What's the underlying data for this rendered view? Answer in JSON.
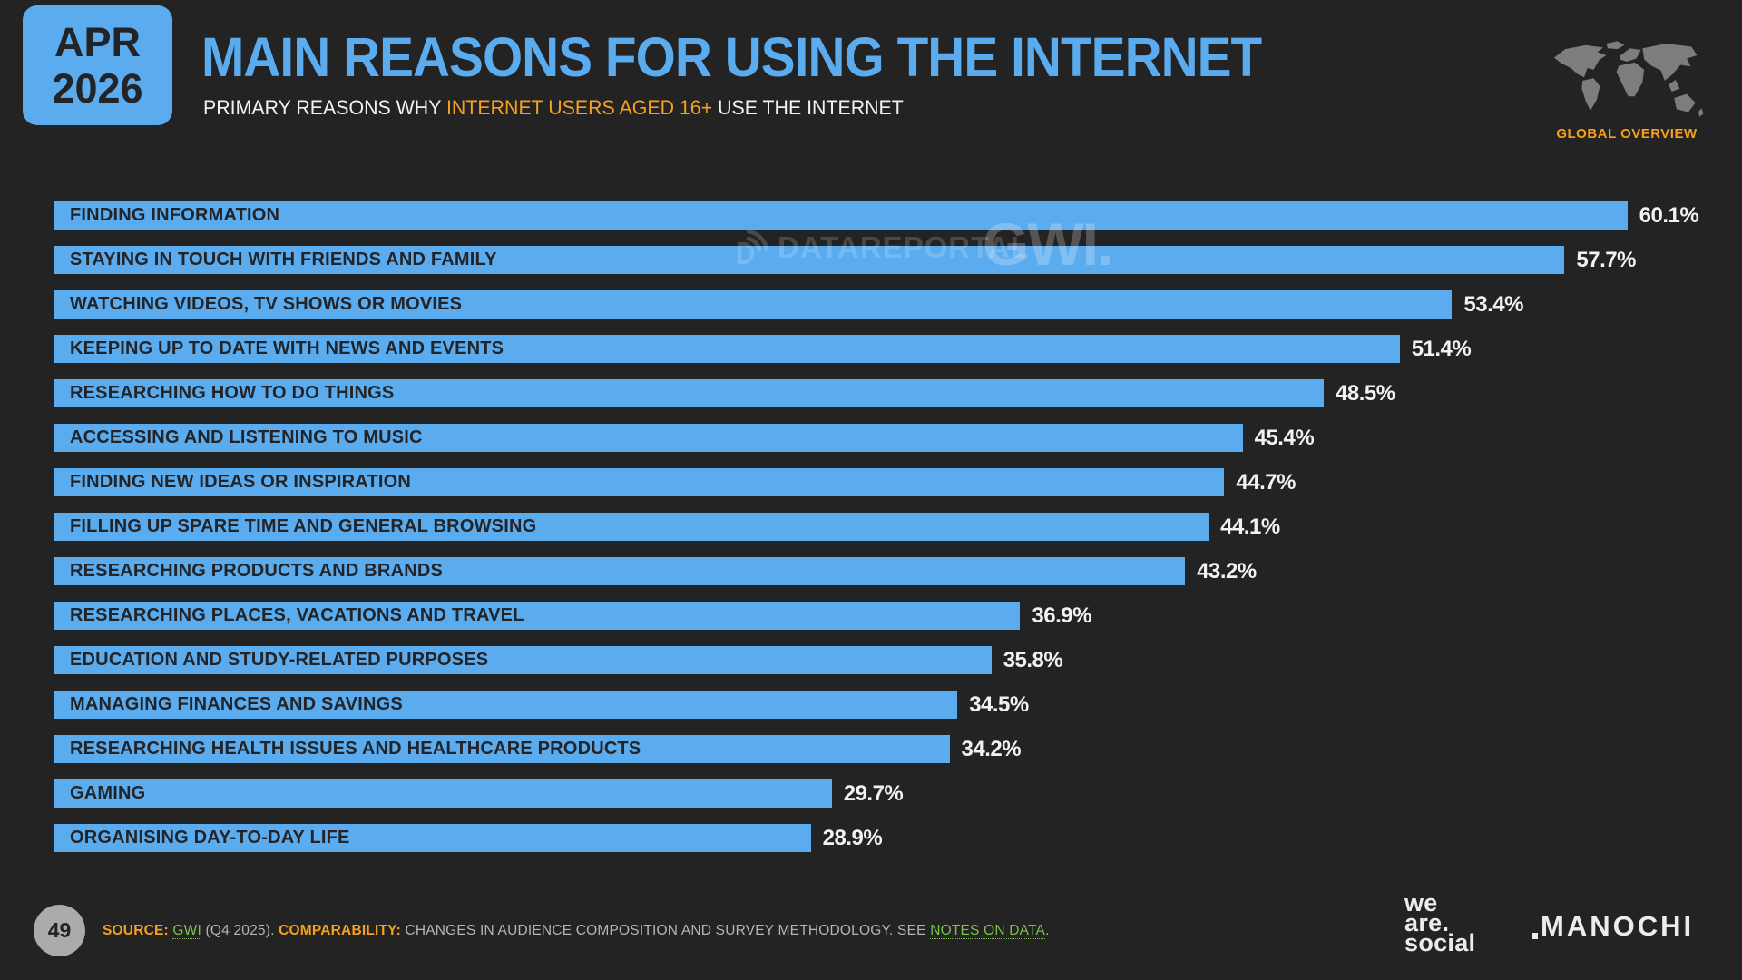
{
  "slide": {
    "date_badge": {
      "month": "APR",
      "year": "2026"
    },
    "title": "MAIN REASONS FOR USING THE INTERNET",
    "subtitle_prefix": "PRIMARY REASONS WHY ",
    "subtitle_highlight": "INTERNET USERS AGED 16+",
    "subtitle_suffix": " USE THE INTERNET",
    "region_label": "GLOBAL OVERVIEW"
  },
  "watermarks": {
    "datareportal": "DATAREPORTAL",
    "gwi": "GWI."
  },
  "chart_data": {
    "type": "bar",
    "orientation": "horizontal",
    "title": "MAIN REASONS FOR USING THE INTERNET",
    "unit": "%",
    "xlim": [
      0,
      62.4
    ],
    "grid": false,
    "legend": "none",
    "bar_color": "#5BACEF",
    "categories": [
      "FINDING INFORMATION",
      "STAYING IN TOUCH WITH FRIENDS AND FAMILY",
      "WATCHING VIDEOS, TV SHOWS OR MOVIES",
      "KEEPING UP TO DATE WITH NEWS AND EVENTS",
      "RESEARCHING HOW TO DO THINGS",
      "ACCESSING AND LISTENING TO MUSIC",
      "FINDING NEW IDEAS OR INSPIRATION",
      "FILLING UP SPARE TIME AND GENERAL BROWSING",
      "RESEARCHING PRODUCTS AND BRANDS",
      "RESEARCHING PLACES, VACATIONS AND TRAVEL",
      "EDUCATION AND STUDY-RELATED PURPOSES",
      "MANAGING FINANCES AND SAVINGS",
      "RESEARCHING HEALTH ISSUES AND HEALTHCARE PRODUCTS",
      "GAMING",
      "ORGANISING DAY-TO-DAY LIFE"
    ],
    "values": [
      60.1,
      57.7,
      53.4,
      51.4,
      48.5,
      45.4,
      44.7,
      44.1,
      43.2,
      36.9,
      35.8,
      34.5,
      34.2,
      29.7,
      28.9
    ],
    "value_labels": [
      "60.1%",
      "57.7%",
      "53.4%",
      "51.4%",
      "48.5%",
      "45.4%",
      "44.7%",
      "44.1%",
      "43.2%",
      "36.9%",
      "35.8%",
      "34.5%",
      "34.2%",
      "29.7%",
      "28.9%"
    ]
  },
  "footer": {
    "page_number": "49",
    "source_label": "SOURCE:",
    "source_link": "GWI",
    "source_mid": " (Q4 2025). ",
    "comparability_label": "COMPARABILITY:",
    "comparability_text": " CHANGES IN AUDIENCE COMPOSITION AND SURVEY METHODOLOGY. SEE ",
    "notes_link": "NOTES ON DATA",
    "source_end": ".",
    "wearesocial_line1": "we",
    "wearesocial_line2": "are.",
    "wearesocial_line3": "social",
    "manochi": "MANOCHI"
  },
  "colors": {
    "background": "#232323",
    "accent_blue": "#5BACEF",
    "accent_orange": "#F5A01E",
    "link_green": "#7CC24B",
    "value_text": "#F2F2F2",
    "bar_label_text": "#232428",
    "map_gray": "#7D7D7D"
  }
}
